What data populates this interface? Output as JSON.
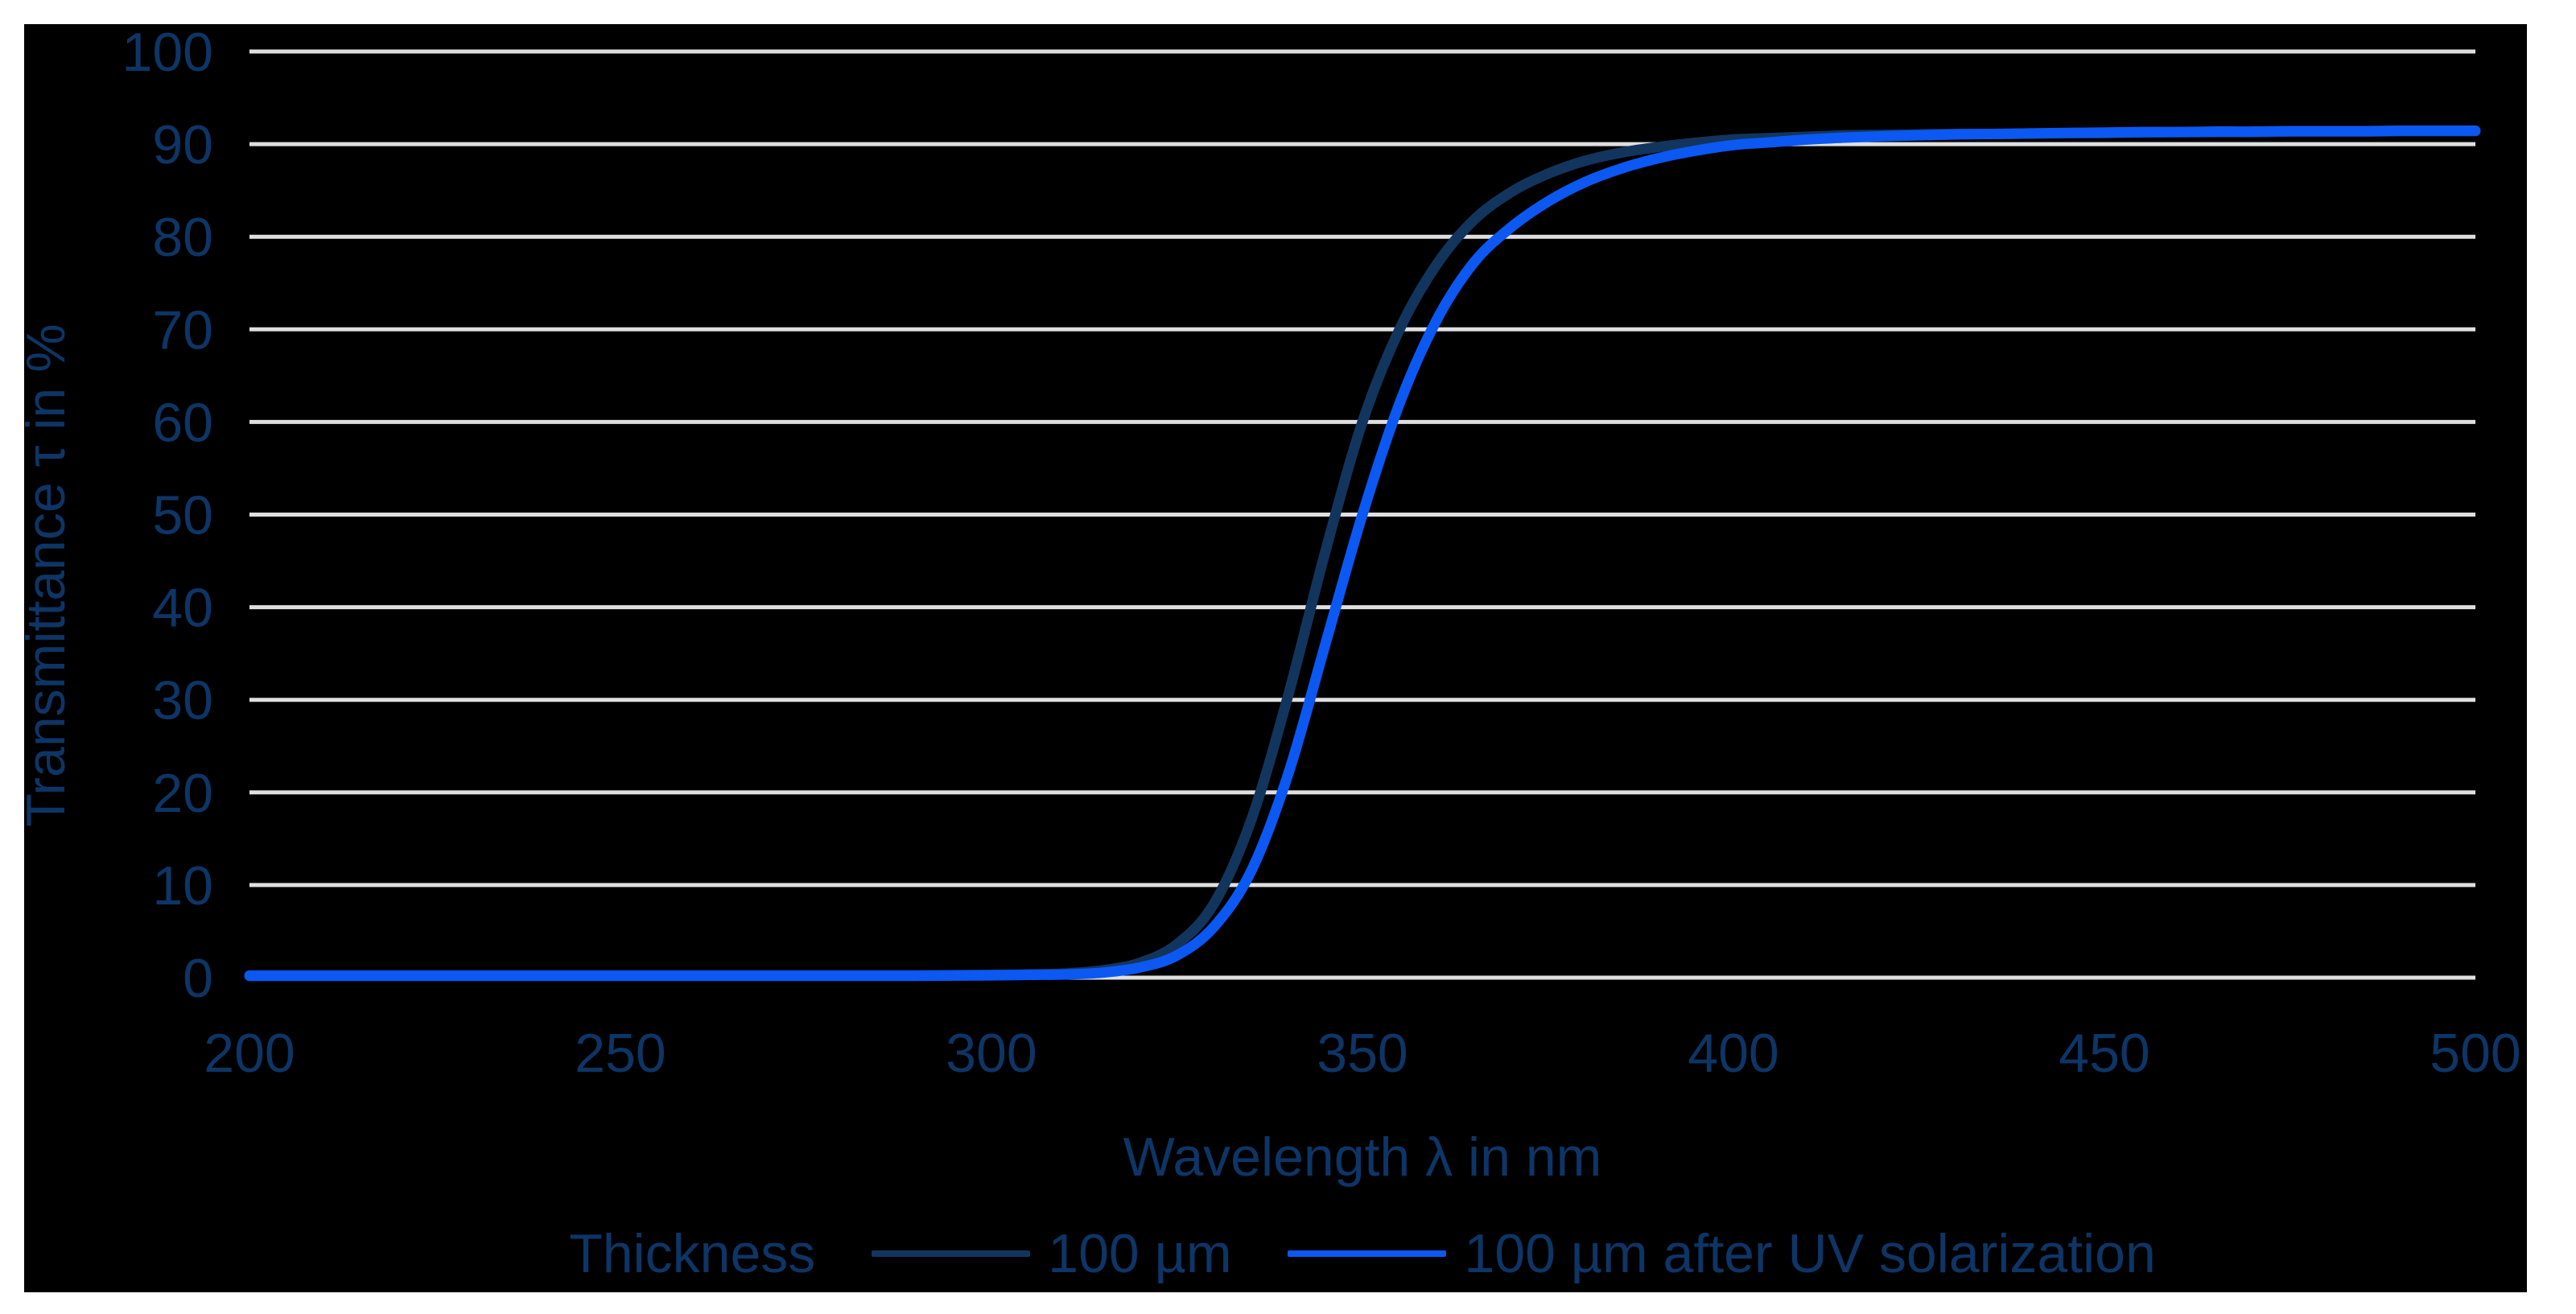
{
  "page": {
    "background": "#ffffff",
    "panel_background": "#000000"
  },
  "chart_data": {
    "type": "line",
    "title": "",
    "xlabel": "Wavelength λ in nm",
    "ylabel": "Transmittance τ in %",
    "xlim": [
      200,
      500
    ],
    "ylim": [
      0,
      100
    ],
    "xticks": [
      200,
      250,
      300,
      350,
      400,
      450,
      500
    ],
    "yticks": [
      0,
      10,
      20,
      30,
      40,
      50,
      60,
      70,
      80,
      90,
      100
    ],
    "grid": "horizontal",
    "legend": {
      "title": "Thickness",
      "position": "bottom"
    },
    "colors": {
      "text": "#0d3566",
      "grid": "#dfdfdf"
    },
    "series": [
      {
        "name": "100 µm",
        "color": "#12355e",
        "points": [
          [
            200,
            0.25
          ],
          [
            210,
            0.25
          ],
          [
            220,
            0.25
          ],
          [
            230,
            0.25
          ],
          [
            240,
            0.25
          ],
          [
            250,
            0.25
          ],
          [
            260,
            0.25
          ],
          [
            270,
            0.25
          ],
          [
            280,
            0.25
          ],
          [
            290,
            0.25
          ],
          [
            300,
            0.3
          ],
          [
            305,
            0.35
          ],
          [
            310,
            0.45
          ],
          [
            315,
            0.8
          ],
          [
            320,
            1.6
          ],
          [
            325,
            3.6
          ],
          [
            330,
            8
          ],
          [
            335,
            17
          ],
          [
            340,
            30.5
          ],
          [
            345,
            46
          ],
          [
            350,
            60
          ],
          [
            355,
            70
          ],
          [
            360,
            77
          ],
          [
            365,
            81.8
          ],
          [
            370,
            84.8
          ],
          [
            375,
            86.8
          ],
          [
            380,
            88.2
          ],
          [
            385,
            89.1
          ],
          [
            390,
            89.7
          ],
          [
            395,
            90.15
          ],
          [
            400,
            90.5
          ],
          [
            405,
            90.65
          ],
          [
            410,
            90.8
          ],
          [
            415,
            90.95
          ],
          [
            420,
            91.0
          ],
          [
            425,
            91.05
          ],
          [
            430,
            91.1
          ],
          [
            435,
            91.1
          ],
          [
            440,
            91.15
          ],
          [
            445,
            91.2
          ],
          [
            450,
            91.2
          ],
          [
            455,
            91.25
          ],
          [
            460,
            91.3
          ],
          [
            465,
            91.3
          ],
          [
            470,
            91.3
          ],
          [
            475,
            91.35
          ],
          [
            480,
            91.35
          ],
          [
            485,
            91.35
          ],
          [
            490,
            91.4
          ],
          [
            495,
            91.4
          ],
          [
            500,
            91.4
          ]
        ]
      },
      {
        "name": "100 µm after UV solarization",
        "color": "#0b58f3",
        "points": [
          [
            200,
            0.2
          ],
          [
            210,
            0.2
          ],
          [
            220,
            0.2
          ],
          [
            230,
            0.2
          ],
          [
            240,
            0.2
          ],
          [
            250,
            0.2
          ],
          [
            260,
            0.2
          ],
          [
            270,
            0.2
          ],
          [
            280,
            0.2
          ],
          [
            290,
            0.2
          ],
          [
            300,
            0.25
          ],
          [
            305,
            0.3
          ],
          [
            310,
            0.35
          ],
          [
            315,
            0.55
          ],
          [
            320,
            1.1
          ],
          [
            325,
            2.4
          ],
          [
            330,
            5.5
          ],
          [
            335,
            11.5
          ],
          [
            340,
            22
          ],
          [
            345,
            36
          ],
          [
            350,
            50
          ],
          [
            355,
            62
          ],
          [
            360,
            71
          ],
          [
            365,
            77.2
          ],
          [
            370,
            81
          ],
          [
            375,
            83.8
          ],
          [
            380,
            85.9
          ],
          [
            385,
            87.4
          ],
          [
            390,
            88.5
          ],
          [
            395,
            89.3
          ],
          [
            400,
            89.9
          ],
          [
            405,
            90.2
          ],
          [
            410,
            90.5
          ],
          [
            415,
            90.7
          ],
          [
            420,
            90.85
          ],
          [
            425,
            90.95
          ],
          [
            430,
            91.05
          ],
          [
            435,
            91.1
          ],
          [
            440,
            91.15
          ],
          [
            445,
            91.2
          ],
          [
            450,
            91.25
          ],
          [
            455,
            91.3
          ],
          [
            460,
            91.3
          ],
          [
            465,
            91.35
          ],
          [
            470,
            91.35
          ],
          [
            475,
            91.4
          ],
          [
            480,
            91.4
          ],
          [
            485,
            91.4
          ],
          [
            490,
            91.45
          ],
          [
            495,
            91.45
          ],
          [
            500,
            91.45
          ]
        ]
      }
    ]
  }
}
